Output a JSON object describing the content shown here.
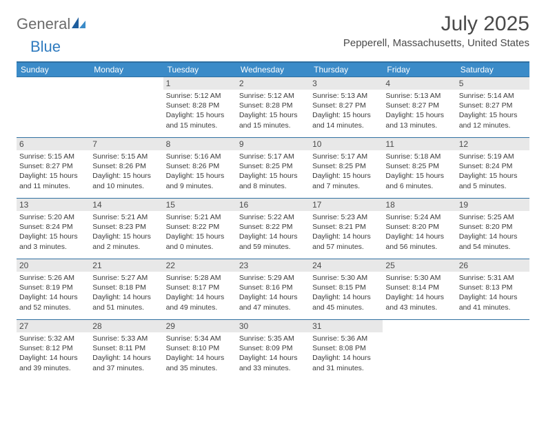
{
  "brand": {
    "part1": "General",
    "part2": "Blue"
  },
  "title": "July 2025",
  "location": "Pepperell, Massachusetts, United States",
  "colors": {
    "header_bg": "#3b8bc8",
    "header_border": "#2f6fa0",
    "daynum_bg": "#e8e8e8",
    "text": "#4a4a4a"
  },
  "weekdays": [
    "Sunday",
    "Monday",
    "Tuesday",
    "Wednesday",
    "Thursday",
    "Friday",
    "Saturday"
  ],
  "weeks": [
    [
      null,
      null,
      {
        "n": "1",
        "sr": "5:12 AM",
        "ss": "8:28 PM",
        "dl": "15 hours and 15 minutes."
      },
      {
        "n": "2",
        "sr": "5:12 AM",
        "ss": "8:28 PM",
        "dl": "15 hours and 15 minutes."
      },
      {
        "n": "3",
        "sr": "5:13 AM",
        "ss": "8:27 PM",
        "dl": "15 hours and 14 minutes."
      },
      {
        "n": "4",
        "sr": "5:13 AM",
        "ss": "8:27 PM",
        "dl": "15 hours and 13 minutes."
      },
      {
        "n": "5",
        "sr": "5:14 AM",
        "ss": "8:27 PM",
        "dl": "15 hours and 12 minutes."
      }
    ],
    [
      {
        "n": "6",
        "sr": "5:15 AM",
        "ss": "8:27 PM",
        "dl": "15 hours and 11 minutes."
      },
      {
        "n": "7",
        "sr": "5:15 AM",
        "ss": "8:26 PM",
        "dl": "15 hours and 10 minutes."
      },
      {
        "n": "8",
        "sr": "5:16 AM",
        "ss": "8:26 PM",
        "dl": "15 hours and 9 minutes."
      },
      {
        "n": "9",
        "sr": "5:17 AM",
        "ss": "8:25 PM",
        "dl": "15 hours and 8 minutes."
      },
      {
        "n": "10",
        "sr": "5:17 AM",
        "ss": "8:25 PM",
        "dl": "15 hours and 7 minutes."
      },
      {
        "n": "11",
        "sr": "5:18 AM",
        "ss": "8:25 PM",
        "dl": "15 hours and 6 minutes."
      },
      {
        "n": "12",
        "sr": "5:19 AM",
        "ss": "8:24 PM",
        "dl": "15 hours and 5 minutes."
      }
    ],
    [
      {
        "n": "13",
        "sr": "5:20 AM",
        "ss": "8:24 PM",
        "dl": "15 hours and 3 minutes."
      },
      {
        "n": "14",
        "sr": "5:21 AM",
        "ss": "8:23 PM",
        "dl": "15 hours and 2 minutes."
      },
      {
        "n": "15",
        "sr": "5:21 AM",
        "ss": "8:22 PM",
        "dl": "15 hours and 0 minutes."
      },
      {
        "n": "16",
        "sr": "5:22 AM",
        "ss": "8:22 PM",
        "dl": "14 hours and 59 minutes."
      },
      {
        "n": "17",
        "sr": "5:23 AM",
        "ss": "8:21 PM",
        "dl": "14 hours and 57 minutes."
      },
      {
        "n": "18",
        "sr": "5:24 AM",
        "ss": "8:20 PM",
        "dl": "14 hours and 56 minutes."
      },
      {
        "n": "19",
        "sr": "5:25 AM",
        "ss": "8:20 PM",
        "dl": "14 hours and 54 minutes."
      }
    ],
    [
      {
        "n": "20",
        "sr": "5:26 AM",
        "ss": "8:19 PM",
        "dl": "14 hours and 52 minutes."
      },
      {
        "n": "21",
        "sr": "5:27 AM",
        "ss": "8:18 PM",
        "dl": "14 hours and 51 minutes."
      },
      {
        "n": "22",
        "sr": "5:28 AM",
        "ss": "8:17 PM",
        "dl": "14 hours and 49 minutes."
      },
      {
        "n": "23",
        "sr": "5:29 AM",
        "ss": "8:16 PM",
        "dl": "14 hours and 47 minutes."
      },
      {
        "n": "24",
        "sr": "5:30 AM",
        "ss": "8:15 PM",
        "dl": "14 hours and 45 minutes."
      },
      {
        "n": "25",
        "sr": "5:30 AM",
        "ss": "8:14 PM",
        "dl": "14 hours and 43 minutes."
      },
      {
        "n": "26",
        "sr": "5:31 AM",
        "ss": "8:13 PM",
        "dl": "14 hours and 41 minutes."
      }
    ],
    [
      {
        "n": "27",
        "sr": "5:32 AM",
        "ss": "8:12 PM",
        "dl": "14 hours and 39 minutes."
      },
      {
        "n": "28",
        "sr": "5:33 AM",
        "ss": "8:11 PM",
        "dl": "14 hours and 37 minutes."
      },
      {
        "n": "29",
        "sr": "5:34 AM",
        "ss": "8:10 PM",
        "dl": "14 hours and 35 minutes."
      },
      {
        "n": "30",
        "sr": "5:35 AM",
        "ss": "8:09 PM",
        "dl": "14 hours and 33 minutes."
      },
      {
        "n": "31",
        "sr": "5:36 AM",
        "ss": "8:08 PM",
        "dl": "14 hours and 31 minutes."
      },
      null,
      null
    ]
  ],
  "labels": {
    "sunrise": "Sunrise: ",
    "sunset": "Sunset: ",
    "daylight": "Daylight: "
  }
}
